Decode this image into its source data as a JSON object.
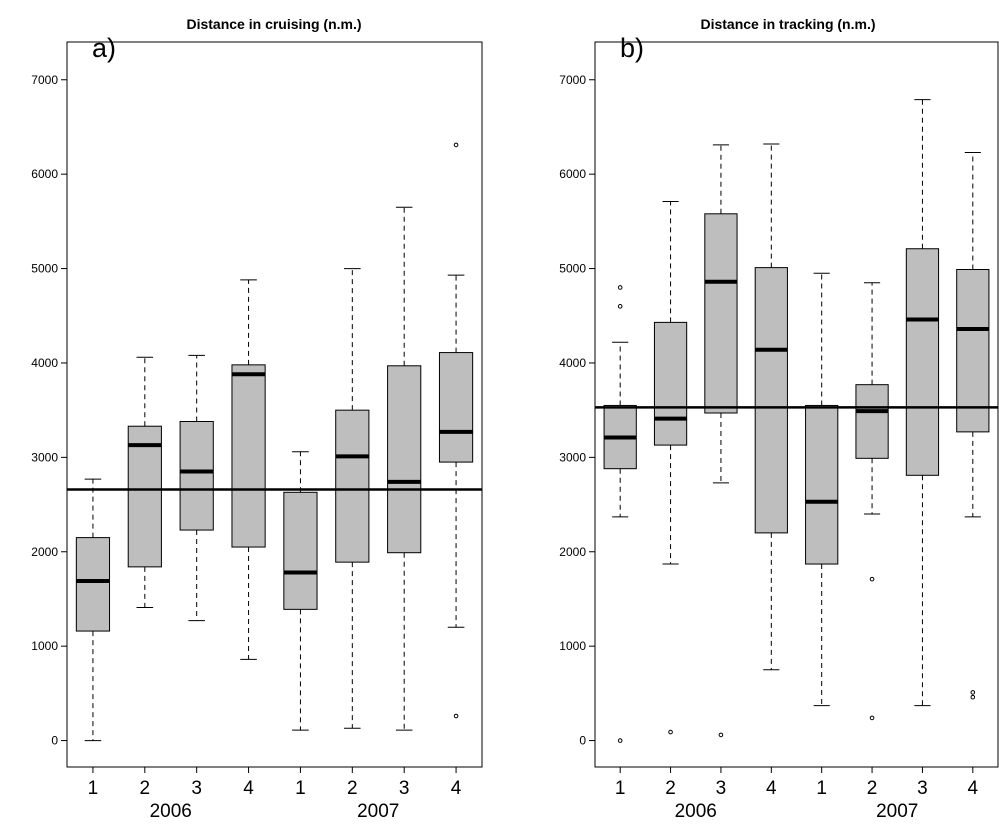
{
  "chart_data": [
    {
      "type": "box",
      "title": "Distance in cruising (n.m.)",
      "panel_label": "a)",
      "ylim": [
        -280,
        7400
      ],
      "yticks": [
        0,
        1000,
        2000,
        3000,
        4000,
        5000,
        6000,
        7000
      ],
      "categories": [
        "1",
        "2",
        "3",
        "4",
        "1",
        "2",
        "3",
        "4"
      ],
      "groups": [
        {
          "label": "2006",
          "from": 0,
          "to": 3
        },
        {
          "label": "2007",
          "from": 4,
          "to": 7
        }
      ],
      "reference_line": 2660,
      "boxes": [
        {
          "min": 0,
          "q1": 1160,
          "median": 1690,
          "q3": 2150,
          "max": 2770,
          "outliers": []
        },
        {
          "min": 1410,
          "q1": 1840,
          "median": 3130,
          "q3": 3330,
          "max": 4060,
          "outliers": []
        },
        {
          "min": 1270,
          "q1": 2230,
          "median": 2850,
          "q3": 3380,
          "max": 4080,
          "outliers": []
        },
        {
          "min": 860,
          "q1": 2050,
          "median": 3880,
          "q3": 3980,
          "max": 4880,
          "outliers": []
        },
        {
          "min": 110,
          "q1": 1390,
          "median": 1780,
          "q3": 2630,
          "max": 3060,
          "outliers": []
        },
        {
          "min": 130,
          "q1": 1890,
          "median": 3010,
          "q3": 3500,
          "max": 5000,
          "outliers": []
        },
        {
          "min": 110,
          "q1": 1990,
          "median": 2740,
          "q3": 3970,
          "max": 5650,
          "outliers": []
        },
        {
          "min": 1200,
          "q1": 2950,
          "median": 3270,
          "q3": 4110,
          "max": 4930,
          "outliers": [
            6310,
            260
          ]
        }
      ]
    },
    {
      "type": "box",
      "title": "Distance in tracking (n.m.)",
      "panel_label": "b)",
      "ylim": [
        -280,
        7400
      ],
      "yticks": [
        0,
        1000,
        2000,
        3000,
        4000,
        5000,
        6000,
        7000
      ],
      "categories": [
        "1",
        "2",
        "3",
        "4",
        "1",
        "2",
        "3",
        "4"
      ],
      "groups": [
        {
          "label": "2006",
          "from": 0,
          "to": 3
        },
        {
          "label": "2007",
          "from": 4,
          "to": 7
        }
      ],
      "reference_line": 3530,
      "boxes": [
        {
          "min": 2370,
          "q1": 2880,
          "median": 3210,
          "q3": 3550,
          "max": 4220,
          "outliers": [
            4800,
            4600,
            0
          ]
        },
        {
          "min": 1870,
          "q1": 3130,
          "median": 3410,
          "q3": 4430,
          "max": 5710,
          "outliers": [
            90
          ]
        },
        {
          "min": 2730,
          "q1": 3470,
          "median": 4860,
          "q3": 5580,
          "max": 6310,
          "outliers": [
            60
          ]
        },
        {
          "min": 750,
          "q1": 2200,
          "median": 4140,
          "q3": 5010,
          "max": 6320,
          "outliers": []
        },
        {
          "min": 370,
          "q1": 1870,
          "median": 2530,
          "q3": 3550,
          "max": 4950,
          "outliers": []
        },
        {
          "min": 2400,
          "q1": 2990,
          "median": 3490,
          "q3": 3770,
          "max": 4850,
          "outliers": [
            1710,
            240
          ]
        },
        {
          "min": 370,
          "q1": 2810,
          "median": 4460,
          "q3": 5210,
          "max": 6790,
          "outliers": []
        },
        {
          "min": 2370,
          "q1": 3270,
          "median": 4360,
          "q3": 4990,
          "max": 6230,
          "outliers": [
            510,
            460
          ]
        }
      ]
    }
  ],
  "colors": {
    "box_fill": "#bebebe",
    "line": "#000000",
    "background": "#ffffff"
  }
}
